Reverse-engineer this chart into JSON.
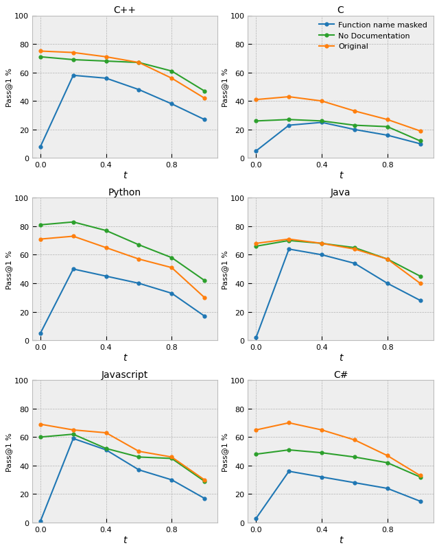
{
  "subplots": [
    {
      "title": "C++",
      "xlabel": "t",
      "x": [
        0.0,
        0.2,
        0.4,
        0.6,
        0.8,
        1.0
      ],
      "function_name_masked": [
        8,
        58,
        56,
        48,
        38,
        27
      ],
      "no_documentation": [
        71,
        69,
        68,
        67,
        61,
        47
      ],
      "original": [
        75,
        74,
        71,
        67,
        56,
        42
      ]
    },
    {
      "title": "C",
      "xlabel": "t",
      "x": [
        0.0,
        0.2,
        0.4,
        0.6,
        0.8,
        1.0
      ],
      "function_name_masked": [
        5,
        23,
        25,
        20,
        16,
        10
      ],
      "no_documentation": [
        26,
        27,
        26,
        23,
        22,
        12
      ],
      "original": [
        41,
        43,
        40,
        33,
        27,
        19
      ]
    },
    {
      "title": "Python",
      "xlabel": "t",
      "x": [
        0.0,
        0.2,
        0.4,
        0.6,
        0.8,
        1.0
      ],
      "function_name_masked": [
        5,
        50,
        45,
        40,
        33,
        17
      ],
      "no_documentation": [
        81,
        83,
        77,
        67,
        58,
        42
      ],
      "original": [
        71,
        73,
        65,
        57,
        51,
        30
      ]
    },
    {
      "title": "Java",
      "xlabel": "t",
      "x": [
        0.0,
        0.2,
        0.4,
        0.6,
        0.8,
        1.0
      ],
      "function_name_masked": [
        2,
        64,
        60,
        54,
        40,
        28
      ],
      "no_documentation": [
        66,
        70,
        68,
        65,
        57,
        45
      ],
      "original": [
        68,
        71,
        68,
        64,
        57,
        40
      ]
    },
    {
      "title": "Javascript",
      "xlabel": "t",
      "x": [
        0.0,
        0.2,
        0.4,
        0.6,
        0.8,
        1.0
      ],
      "function_name_masked": [
        1,
        59,
        51,
        37,
        30,
        17
      ],
      "no_documentation": [
        60,
        62,
        52,
        46,
        45,
        29
      ],
      "original": [
        69,
        65,
        63,
        50,
        46,
        30
      ]
    },
    {
      "title": "C#",
      "xlabel": "t",
      "x": [
        0.0,
        0.2,
        0.4,
        0.6,
        0.8,
        1.0
      ],
      "function_name_masked": [
        3,
        36,
        32,
        28,
        24,
        15
      ],
      "no_documentation": [
        48,
        51,
        49,
        46,
        42,
        32
      ],
      "original": [
        65,
        70,
        65,
        58,
        47,
        33
      ]
    }
  ],
  "colors": {
    "function_name_masked": "#1f77b4",
    "no_documentation": "#2ca02c",
    "original": "#ff7f0e"
  },
  "legend_labels": {
    "function_name_masked": "Function name masked",
    "no_documentation": "No Documentation",
    "original": "Original"
  },
  "ylabel": "Pass@1 %",
  "ylim": [
    0,
    100
  ],
  "yticks": [
    0,
    20,
    40,
    60,
    80,
    100
  ]
}
